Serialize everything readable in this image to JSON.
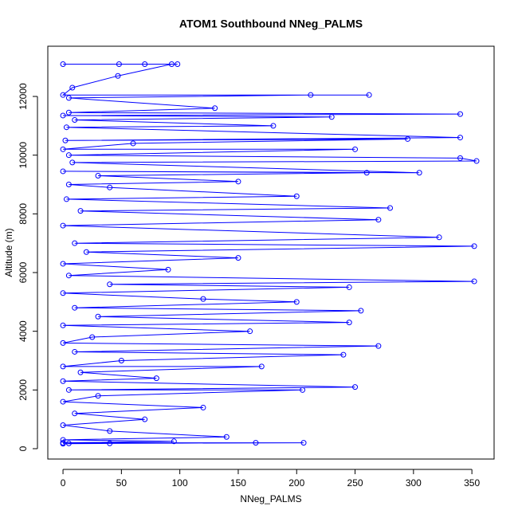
{
  "chart_data": {
    "type": "line",
    "title": "ATOM1 Southbound NNeg_PALMS",
    "x_label": "NNeg_PALMS",
    "y_label": "Altitude (m)",
    "color": "#0000ff",
    "x": [
      0,
      48,
      70,
      98,
      93,
      47,
      8,
      0,
      262,
      212,
      5,
      130,
      5,
      340,
      0,
      230,
      10,
      180,
      3,
      340,
      2,
      295,
      60,
      0,
      250,
      5,
      340,
      354,
      8,
      305,
      0,
      260,
      30,
      150,
      5,
      40,
      200,
      3,
      280,
      15,
      270,
      0,
      322,
      10,
      352,
      20,
      150,
      0,
      90,
      5,
      352,
      40,
      245,
      0,
      120,
      200,
      10,
      255,
      30,
      245,
      0,
      160,
      25,
      0,
      270,
      10,
      240,
      50,
      0,
      170,
      15,
      80,
      0,
      250,
      5,
      205,
      30,
      0,
      120,
      10,
      70,
      0,
      40,
      140,
      0,
      95,
      0,
      206,
      5,
      165,
      40,
      0
    ],
    "values": [
      13100,
      13100,
      13100,
      13100,
      13100,
      12700,
      12300,
      12050,
      12050,
      12050,
      11950,
      11600,
      11450,
      11400,
      11350,
      11300,
      11200,
      11000,
      10950,
      10600,
      10500,
      10550,
      10400,
      10200,
      10200,
      10000,
      9900,
      9800,
      9750,
      9400,
      9450,
      9400,
      9300,
      9100,
      9000,
      8900,
      8600,
      8500,
      8200,
      8100,
      7800,
      7600,
      7200,
      7000,
      6900,
      6700,
      6500,
      6300,
      6100,
      5900,
      5700,
      5600,
      5500,
      5300,
      5100,
      5000,
      4800,
      4700,
      4500,
      4300,
      4200,
      4000,
      3800,
      3600,
      3500,
      3300,
      3200,
      3000,
      2800,
      2800,
      2600,
      2400,
      2300,
      2100,
      2000,
      2000,
      1800,
      1600,
      1400,
      1200,
      1000,
      800,
      600,
      400,
      300,
      250,
      200,
      200,
      180,
      200,
      180,
      170
    ],
    "xlim": [
      -13,
      369
    ],
    "ylim": [
      -353,
      13711
    ],
    "xticks": [
      0,
      50,
      100,
      150,
      200,
      250,
      300,
      350
    ],
    "yticks": [
      0,
      2000,
      4000,
      6000,
      8000,
      10000,
      12000
    ]
  }
}
